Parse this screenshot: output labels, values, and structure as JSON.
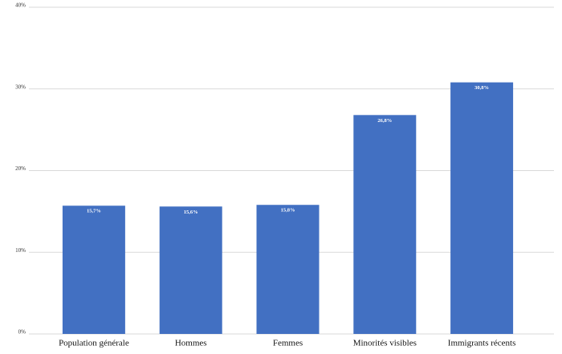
{
  "chart_data": {
    "type": "bar",
    "categories": [
      "Population générale",
      "Hommes",
      "Femmes",
      "Minorités visibles",
      "Immigrants récents"
    ],
    "values": [
      15.7,
      15.6,
      15.8,
      26.8,
      30.8
    ],
    "value_labels": [
      "15,7%",
      "15,6%",
      "15,8%",
      "26,8%",
      "30,8%"
    ],
    "color": "#4270c2",
    "ylim": [
      0,
      40
    ],
    "yticks": [
      {
        "value": 0,
        "label": "0%"
      },
      {
        "value": 10,
        "label": "10%"
      },
      {
        "value": 20,
        "label": "20%"
      },
      {
        "value": 30,
        "label": "30%"
      },
      {
        "value": 40,
        "label": "40%"
      }
    ],
    "grid": true
  }
}
